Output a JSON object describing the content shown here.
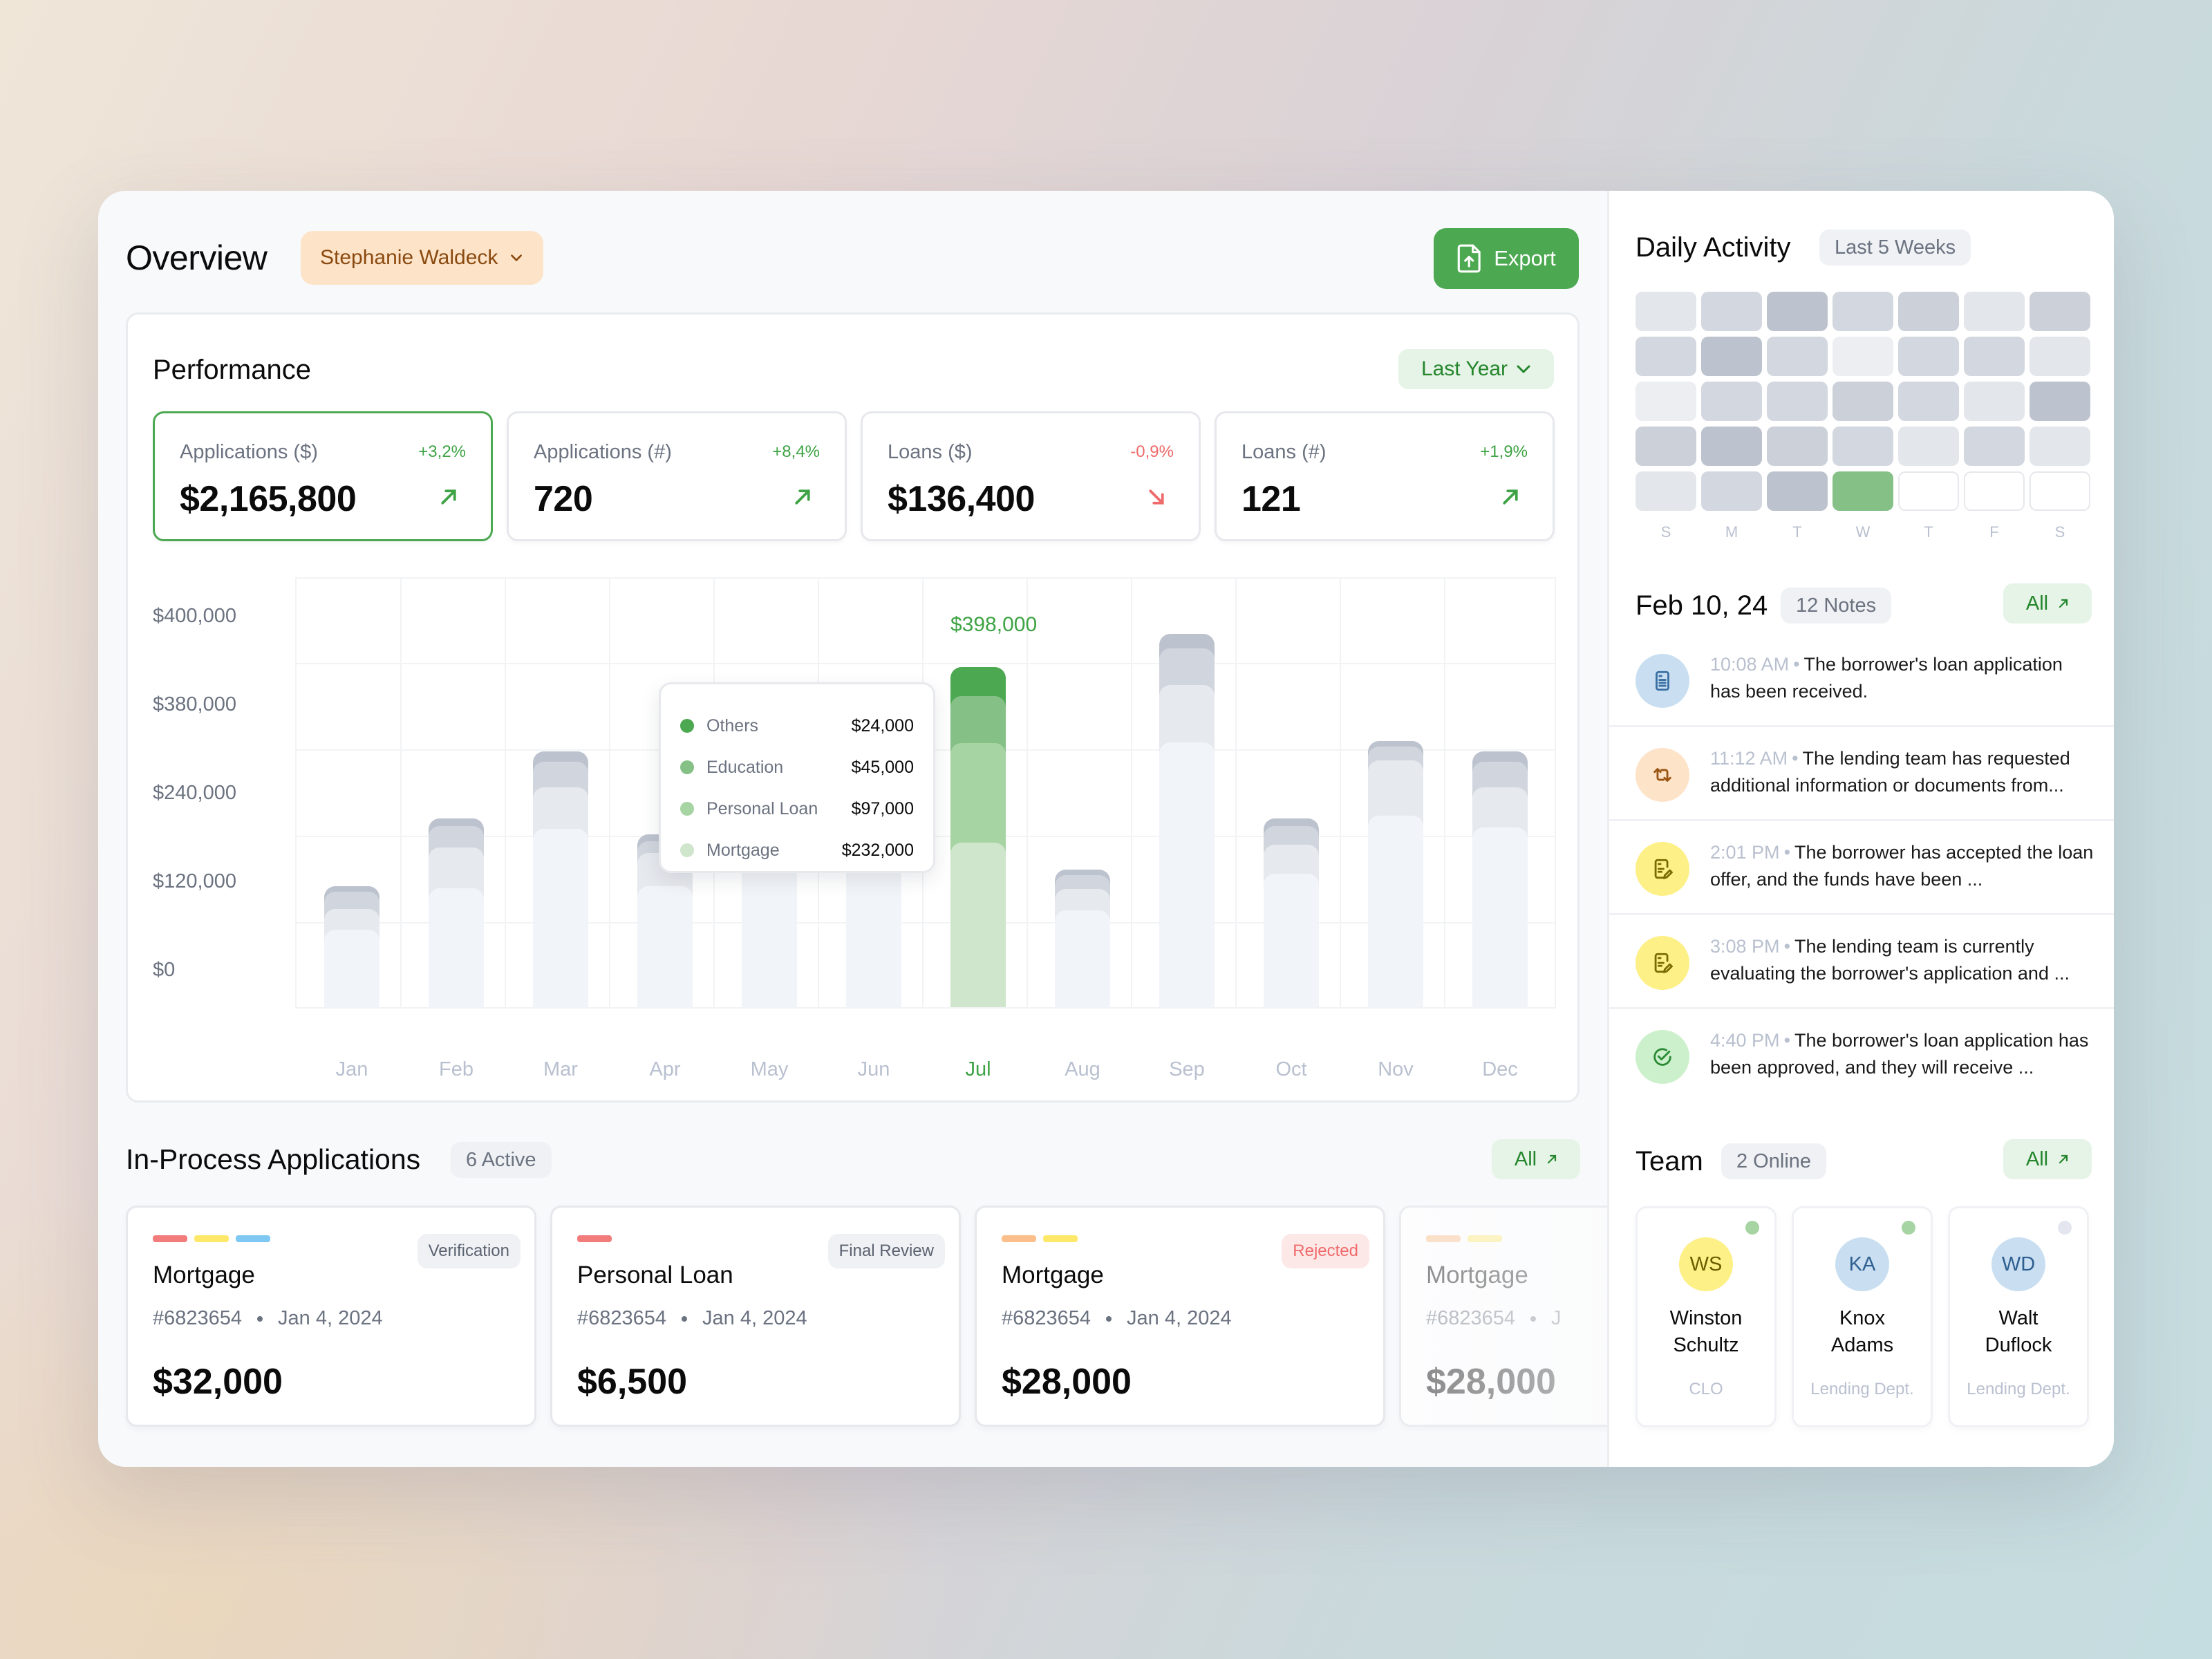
{
  "header": {
    "title": "Overview",
    "user": "Stephanie Waldeck",
    "export_label": "Export"
  },
  "performance": {
    "title": "Performance",
    "period": "Last Year",
    "kpis": [
      {
        "label": "Applications ($)",
        "value": "$2,165,800",
        "delta": "+3,2%",
        "trend": "up",
        "active": true
      },
      {
        "label": "Applications (#)",
        "value": "720",
        "delta": "+8,4%",
        "trend": "up",
        "active": false
      },
      {
        "label": "Loans ($)",
        "value": "$136,400",
        "delta": "-0,9%",
        "trend": "down",
        "active": false
      },
      {
        "label": "Loans (#)",
        "value": "121",
        "delta": "+1,9%",
        "trend": "up",
        "active": false
      }
    ],
    "highlight_value": "$398,000",
    "tooltip": [
      {
        "name": "Others",
        "value": "$24,000",
        "color": "#4ca851"
      },
      {
        "name": "Education",
        "value": "$45,000",
        "color": "#85c087"
      },
      {
        "name": "Personal Loan",
        "value": "$97,000",
        "color": "#a7d4a3"
      },
      {
        "name": "Mortgage",
        "value": "$232,000",
        "color": "#cfe5cc"
      }
    ]
  },
  "chart_data": {
    "type": "bar",
    "stacked": true,
    "title": "Performance",
    "xlabel": "",
    "ylabel": "",
    "y_tick_labels": [
      "$400,000",
      "$380,000",
      "$240,000",
      "$120,000",
      "$0"
    ],
    "categories": [
      "Jan",
      "Feb",
      "Mar",
      "Apr",
      "May",
      "Jun",
      "Jul",
      "Aug",
      "Sep",
      "Oct",
      "Nov",
      "Dec"
    ],
    "highlighted_category": "Jul",
    "series": [
      {
        "name": "Mortgage",
        "values": [
          110000,
          170000,
          230000,
          160000,
          200000,
          200000,
          232000,
          125000,
          335000,
          170000,
          245000,
          230000
        ]
      },
      {
        "name": "Personal Loan",
        "values": [
          35000,
          65000,
          75000,
          60000,
          null,
          null,
          97000,
          40000,
          105000,
          55000,
          100000,
          75000
        ]
      },
      {
        "name": "Education",
        "values": [
          20000,
          25000,
          45000,
          20000,
          null,
          null,
          45000,
          25000,
          65000,
          35000,
          25000,
          45000
        ]
      },
      {
        "name": "Others",
        "values": [
          10000,
          15000,
          20000,
          15000,
          null,
          null,
          24000,
          10000,
          25000,
          15000,
          10000,
          20000
        ]
      }
    ],
    "totals": {
      "Jul": 398000
    },
    "grid": true,
    "legend": "tooltip"
  },
  "applications": {
    "title": "In-Process Applications",
    "badge": "6 Active",
    "all_label": "All",
    "cards": [
      {
        "type": "Mortgage",
        "status": "Verification",
        "status_kind": "neutral",
        "id": "#6823654",
        "date": "Jan 4, 2024",
        "amount": "$32,000",
        "tags": [
          "#f27b7b",
          "#fde86a",
          "#7fc8f3"
        ]
      },
      {
        "type": "Personal Loan",
        "status": "Final Review",
        "status_kind": "neutral",
        "id": "#6823654",
        "date": "Jan 4, 2024",
        "amount": "$6,500",
        "tags": [
          "#f27b7b"
        ]
      },
      {
        "type": "Mortgage",
        "status": "Rejected",
        "status_kind": "danger",
        "id": "#6823654",
        "date": "Jan 4, 2024",
        "amount": "$28,000",
        "tags": [
          "#fbbf8b",
          "#fde86a"
        ]
      },
      {
        "type": "Mortgage",
        "status": "",
        "status_kind": "neutral",
        "id": "#6823654",
        "date": "J",
        "amount": "$28,000",
        "tags": [
          "#fbbf8b",
          "#fde86a"
        ]
      }
    ]
  },
  "activity": {
    "title": "Daily Activity",
    "range": "Last 5 Weeks",
    "days": [
      "S",
      "M",
      "T",
      "W",
      "T",
      "F",
      "S"
    ],
    "grid": [
      [
        1,
        2,
        4,
        2,
        3,
        1,
        3
      ],
      [
        2,
        4,
        2,
        0,
        2,
        2,
        1
      ],
      [
        0,
        2,
        2,
        3,
        2,
        1,
        4
      ],
      [
        3,
        4,
        3,
        2,
        1,
        2,
        1
      ],
      [
        1,
        2,
        4,
        "today",
        "empty",
        "empty",
        "empty"
      ]
    ],
    "level_colors": [
      "#eceef2",
      "#e3e6eb",
      "#d3d7df",
      "#ccd0d9",
      "#bdc3ce"
    ],
    "today_color": "#85c087"
  },
  "notes": {
    "date": "Feb 10, 24",
    "badge": "12 Notes",
    "all_label": "All",
    "items": [
      {
        "time": "10:08 AM",
        "text": "The borrower's loan application has been received.",
        "icon": "document",
        "bg": "#c9dff1",
        "fg": "#3a6fa3"
      },
      {
        "time": "11:12 AM",
        "text": "The lending team has requested additional information or documents from...",
        "icon": "repeat",
        "bg": "#fde3c8",
        "fg": "#9a5412"
      },
      {
        "time": "2:01 PM",
        "text": "The borrower has accepted the loan offer, and the funds have been ...",
        "icon": "document-edit",
        "bg": "#fdf087",
        "fg": "#7a6b00"
      },
      {
        "time": "3:08 PM",
        "text": "The lending team is currently evaluating the borrower's application and ...",
        "icon": "document-edit",
        "bg": "#fdf087",
        "fg": "#7a6b00"
      },
      {
        "time": "4:40 PM",
        "text": "The borrower's loan application has been approved, and they will receive ...",
        "icon": "check-circle",
        "bg": "#ccf0cc",
        "fg": "#2b8a35"
      }
    ]
  },
  "team": {
    "title": "Team",
    "badge": "2 Online",
    "all_label": "All",
    "members": [
      {
        "initials": "WS",
        "first": "Winston",
        "last": "Schultz",
        "role": "CLO",
        "online": true,
        "bg": "#fdf087",
        "fg": "#6b5e00"
      },
      {
        "initials": "KA",
        "first": "Knox",
        "last": "Adams",
        "role": "Lending Dept.",
        "online": true,
        "bg": "#c9dff1",
        "fg": "#2f5f90"
      },
      {
        "initials": "WD",
        "first": "Walt",
        "last": "Duflock",
        "role": "Lending Dept.",
        "online": false,
        "bg": "#c9dff1",
        "fg": "#2f5f90"
      }
    ]
  }
}
